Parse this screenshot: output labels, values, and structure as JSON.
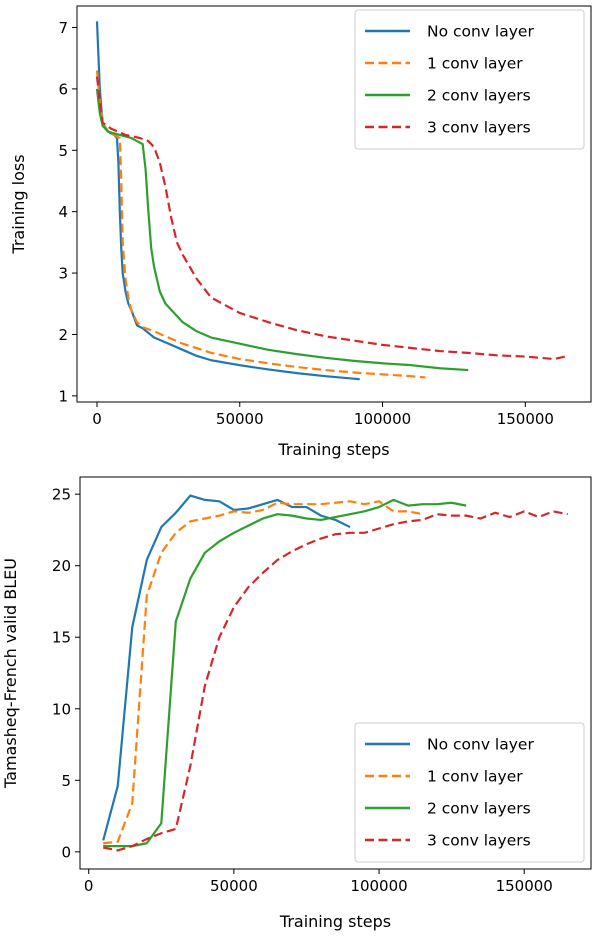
{
  "chart_data": [
    {
      "type": "line",
      "xlabel": "Training steps",
      "ylabel": "Training loss",
      "xlim": [
        -7000,
        173000
      ],
      "ylim": [
        0.9,
        7.35
      ],
      "xticks": [
        0,
        50000,
        100000,
        150000
      ],
      "xtick_labels": [
        "0",
        "50000",
        "100000",
        "150000"
      ],
      "yticks": [
        1,
        2,
        3,
        4,
        5,
        6,
        7
      ],
      "ytick_labels": [
        "1",
        "2",
        "3",
        "4",
        "5",
        "6",
        "7"
      ],
      "grid": false,
      "legend_position": "top-right",
      "series": [
        {
          "name": "No conv layer",
          "color": "#1f77b4",
          "dash": "solid",
          "x": [
            0,
            1000,
            2000,
            4000,
            6000,
            7000,
            7500,
            8000,
            8500,
            9000,
            10000,
            11000,
            12000,
            14000,
            16000,
            20000,
            25000,
            30000,
            35000,
            40000,
            50000,
            60000,
            70000,
            80000,
            85000,
            90000,
            92000
          ],
          "y": [
            7.1,
            6.0,
            5.4,
            5.3,
            5.25,
            5.2,
            4.8,
            4.0,
            3.4,
            3.0,
            2.7,
            2.5,
            2.4,
            2.15,
            2.1,
            1.95,
            1.85,
            1.75,
            1.65,
            1.58,
            1.5,
            1.43,
            1.37,
            1.32,
            1.3,
            1.28,
            1.27
          ]
        },
        {
          "name": "1 conv layer",
          "color": "#ff7f0e",
          "dash": "dashed",
          "x": [
            0,
            1000,
            2000,
            4000,
            6000,
            8000,
            8500,
            9000,
            10000,
            11000,
            12000,
            14000,
            16000,
            20000,
            25000,
            30000,
            40000,
            50000,
            60000,
            70000,
            80000,
            90000,
            100000,
            110000,
            115000
          ],
          "y": [
            6.3,
            5.8,
            5.45,
            5.3,
            5.25,
            5.2,
            4.5,
            3.5,
            2.9,
            2.6,
            2.4,
            2.2,
            2.12,
            2.05,
            1.95,
            1.85,
            1.7,
            1.6,
            1.53,
            1.47,
            1.42,
            1.38,
            1.35,
            1.32,
            1.3
          ]
        },
        {
          "name": "2 conv layers",
          "color": "#2ca02c",
          "dash": "solid",
          "x": [
            0,
            1000,
            2000,
            4000,
            8000,
            12000,
            14000,
            16000,
            17000,
            18000,
            19000,
            20000,
            22000,
            24000,
            26000,
            28000,
            30000,
            35000,
            40000,
            50000,
            60000,
            70000,
            80000,
            90000,
            100000,
            110000,
            120000,
            130000
          ],
          "y": [
            6.0,
            5.6,
            5.4,
            5.3,
            5.25,
            5.2,
            5.15,
            5.1,
            4.7,
            4.0,
            3.4,
            3.1,
            2.7,
            2.5,
            2.4,
            2.3,
            2.2,
            2.05,
            1.95,
            1.85,
            1.75,
            1.68,
            1.62,
            1.57,
            1.53,
            1.5,
            1.45,
            1.42
          ]
        },
        {
          "name": "3 conv layers",
          "color": "#d62728",
          "dash": "dashed",
          "x": [
            0,
            1000,
            2000,
            5000,
            10000,
            15000,
            18000,
            20000,
            22000,
            24000,
            26000,
            28000,
            30000,
            35000,
            40000,
            50000,
            60000,
            70000,
            80000,
            90000,
            100000,
            110000,
            120000,
            130000,
            140000,
            150000,
            160000,
            165000
          ],
          "y": [
            6.2,
            5.8,
            5.45,
            5.35,
            5.25,
            5.2,
            5.15,
            5.05,
            4.8,
            4.4,
            3.9,
            3.5,
            3.3,
            2.9,
            2.6,
            2.35,
            2.2,
            2.07,
            1.97,
            1.9,
            1.83,
            1.78,
            1.73,
            1.7,
            1.66,
            1.64,
            1.6,
            1.65
          ]
        }
      ]
    },
    {
      "type": "line",
      "xlabel": "Training steps",
      "ylabel": "Tamasheq-French valid BLEU",
      "xlim": [
        -3000,
        173000
      ],
      "ylim": [
        -1.2,
        26.2
      ],
      "xticks": [
        0,
        50000,
        100000,
        150000
      ],
      "xtick_labels": [
        "0",
        "50000",
        "100000",
        "150000"
      ],
      "yticks": [
        0,
        5,
        10,
        15,
        20,
        25
      ],
      "ytick_labels": [
        "0",
        "5",
        "10",
        "15",
        "20",
        "25"
      ],
      "grid": false,
      "legend_position": "bottom-right",
      "series": [
        {
          "name": "No conv layer",
          "color": "#1f77b4",
          "dash": "solid",
          "x": [
            5000,
            10000,
            15000,
            20000,
            25000,
            30000,
            35000,
            40000,
            45000,
            50000,
            55000,
            60000,
            65000,
            70000,
            75000,
            80000,
            85000,
            90000
          ],
          "y": [
            0.8,
            4.6,
            15.7,
            20.4,
            22.7,
            23.7,
            24.9,
            24.6,
            24.5,
            23.9,
            24.0,
            24.3,
            24.6,
            24.1,
            24.1,
            23.5,
            23.2,
            22.7
          ]
        },
        {
          "name": "1 conv layer",
          "color": "#ff7f0e",
          "dash": "dashed",
          "x": [
            5000,
            10000,
            15000,
            20000,
            25000,
            30000,
            35000,
            40000,
            45000,
            50000,
            55000,
            60000,
            65000,
            70000,
            75000,
            80000,
            85000,
            90000,
            95000,
            100000,
            105000,
            110000,
            115000
          ],
          "y": [
            0.6,
            0.7,
            3.4,
            17.9,
            20.9,
            22.3,
            23.1,
            23.3,
            23.5,
            23.8,
            23.7,
            23.9,
            24.4,
            24.3,
            24.3,
            24.3,
            24.4,
            24.5,
            24.3,
            24.5,
            23.8,
            23.8,
            23.6
          ]
        },
        {
          "name": "2 conv layers",
          "color": "#2ca02c",
          "dash": "solid",
          "x": [
            5000,
            10000,
            15000,
            20000,
            25000,
            30000,
            35000,
            40000,
            45000,
            50000,
            55000,
            60000,
            65000,
            70000,
            75000,
            80000,
            85000,
            90000,
            95000,
            100000,
            105000,
            110000,
            115000,
            120000,
            125000,
            130000
          ],
          "y": [
            0.4,
            0.4,
            0.4,
            0.6,
            2.0,
            16.1,
            19.1,
            20.9,
            21.7,
            22.3,
            22.8,
            23.3,
            23.6,
            23.5,
            23.3,
            23.2,
            23.4,
            23.6,
            23.8,
            24.1,
            24.6,
            24.2,
            24.3,
            24.3,
            24.4,
            24.2
          ]
        },
        {
          "name": "3 conv layers",
          "color": "#d62728",
          "dash": "dashed",
          "x": [
            5000,
            10000,
            15000,
            20000,
            25000,
            30000,
            35000,
            40000,
            45000,
            50000,
            55000,
            60000,
            65000,
            70000,
            75000,
            80000,
            85000,
            90000,
            95000,
            100000,
            105000,
            110000,
            115000,
            120000,
            125000,
            130000,
            135000,
            140000,
            145000,
            150000,
            155000,
            160000,
            165000
          ],
          "y": [
            0.3,
            0.1,
            0.4,
            0.9,
            1.3,
            1.6,
            6.0,
            11.6,
            15.0,
            17.1,
            18.5,
            19.5,
            20.4,
            21.0,
            21.5,
            21.9,
            22.2,
            22.3,
            22.3,
            22.6,
            22.9,
            23.1,
            23.2,
            23.6,
            23.5,
            23.5,
            23.3,
            23.7,
            23.4,
            23.8,
            23.4,
            23.8,
            23.6
          ]
        }
      ]
    }
  ]
}
